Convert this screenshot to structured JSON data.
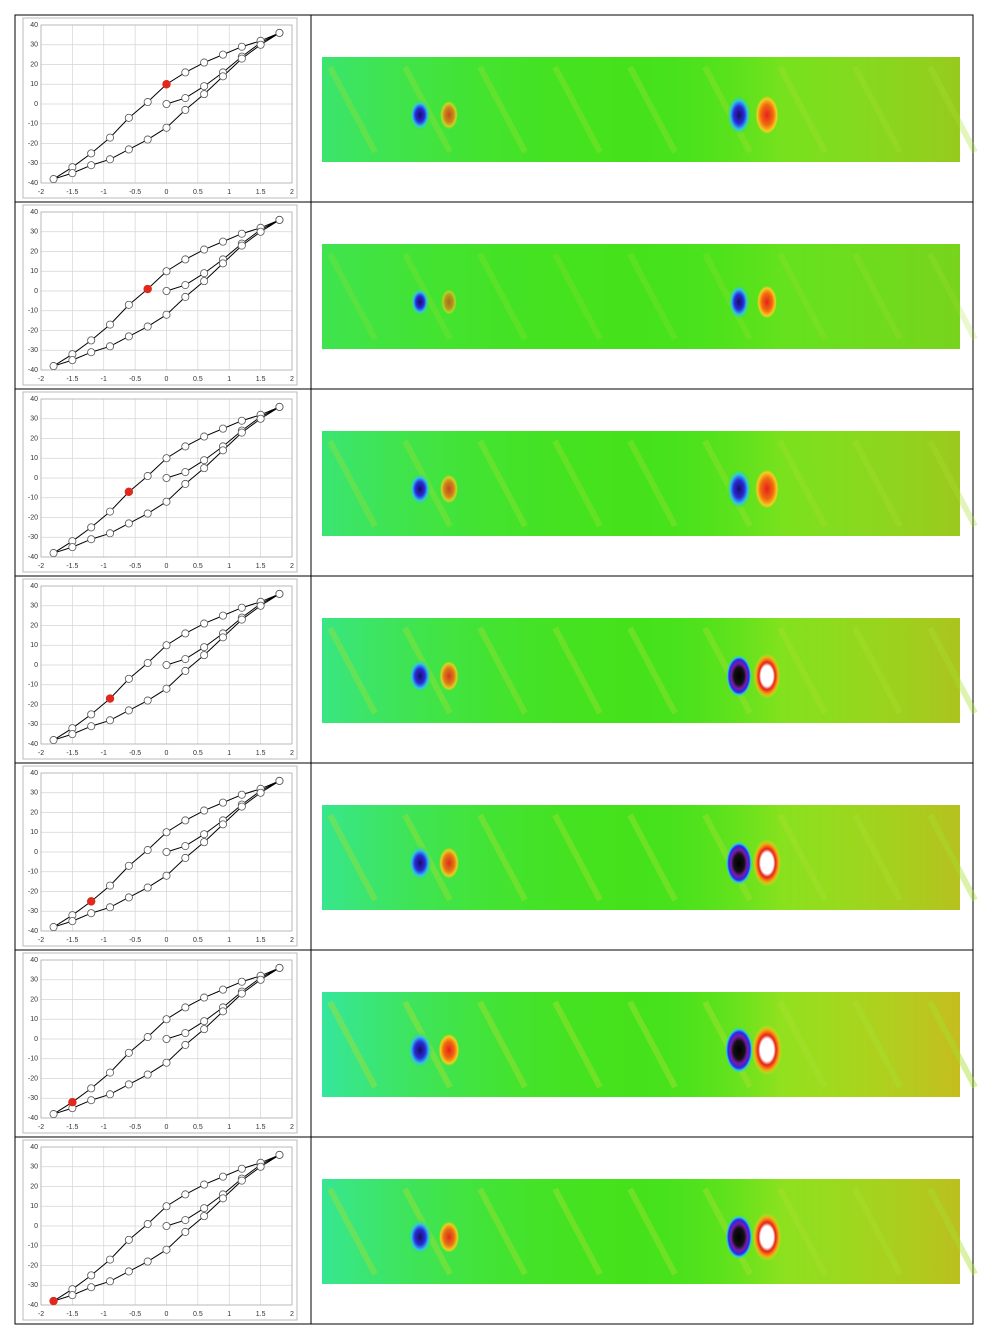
{
  "chart_data": [
    {
      "type": "line",
      "xlim": [
        -2,
        2
      ],
      "ylim": [
        -40,
        40
      ],
      "xticks": [
        -2,
        -1.5,
        -1,
        -0.5,
        0,
        0.5,
        1,
        1.5,
        2
      ],
      "yticks": [
        -40,
        -30,
        -20,
        -10,
        0,
        10,
        20,
        30,
        40
      ],
      "grid": true,
      "series": [
        {
          "color": "#000000",
          "x": [
            0,
            0.3,
            0.6,
            0.9,
            1.2,
            1.5,
            1.8,
            1.5,
            1.2,
            0.9,
            0.6,
            0.3,
            0,
            -0.3,
            -0.6,
            -0.9,
            -1.2,
            -1.5,
            -1.8,
            -1.5,
            -1.2,
            -0.9,
            -0.6,
            -0.3,
            0,
            0.3,
            0.6,
            0.9,
            1.2,
            1.5,
            1.8
          ],
          "y": [
            0,
            3,
            9,
            16,
            24,
            31,
            36,
            32,
            29,
            25,
            21,
            16,
            10,
            1,
            -7,
            -17,
            -25,
            -32,
            -38,
            -35,
            -31,
            -28,
            -23,
            -18,
            -12,
            -3,
            5,
            14,
            23,
            30,
            36
          ]
        },
        {
          "color": "#e0281c",
          "x": [
            0
          ],
          "y": [
            10
          ]
        }
      ]
    },
    {
      "type": "line",
      "xlim": [
        -2,
        2
      ],
      "ylim": [
        -40,
        40
      ],
      "xticks": [
        -2,
        -1.5,
        -1,
        -0.5,
        0,
        0.5,
        1,
        1.5,
        2
      ],
      "yticks": [
        -40,
        -30,
        -20,
        -10,
        0,
        10,
        20,
        30,
        40
      ],
      "grid": true,
      "series": [
        {
          "color": "#000000",
          "x": [
            0,
            0.3,
            0.6,
            0.9,
            1.2,
            1.5,
            1.8,
            1.5,
            1.2,
            0.9,
            0.6,
            0.3,
            0,
            -0.3,
            -0.6,
            -0.9,
            -1.2,
            -1.5,
            -1.8,
            -1.5,
            -1.2,
            -0.9,
            -0.6,
            -0.3,
            0,
            0.3,
            0.6,
            0.9,
            1.2,
            1.5,
            1.8
          ],
          "y": [
            0,
            3,
            9,
            16,
            24,
            31,
            36,
            32,
            29,
            25,
            21,
            16,
            10,
            1,
            -7,
            -17,
            -25,
            -32,
            -38,
            -35,
            -31,
            -28,
            -23,
            -18,
            -12,
            -3,
            5,
            14,
            23,
            30,
            36
          ]
        },
        {
          "color": "#e0281c",
          "x": [
            -0.3
          ],
          "y": [
            1
          ]
        }
      ]
    },
    {
      "type": "line",
      "xlim": [
        -2,
        2
      ],
      "ylim": [
        -40,
        40
      ],
      "xticks": [
        -2,
        -1.5,
        -1,
        -0.5,
        0,
        0.5,
        1,
        1.5,
        2
      ],
      "yticks": [
        -40,
        -30,
        -20,
        -10,
        0,
        10,
        20,
        30,
        40
      ],
      "grid": true,
      "series": [
        {
          "color": "#000000",
          "x": [
            0,
            0.3,
            0.6,
            0.9,
            1.2,
            1.5,
            1.8,
            1.5,
            1.2,
            0.9,
            0.6,
            0.3,
            0,
            -0.3,
            -0.6,
            -0.9,
            -1.2,
            -1.5,
            -1.8,
            -1.5,
            -1.2,
            -0.9,
            -0.6,
            -0.3,
            0,
            0.3,
            0.6,
            0.9,
            1.2,
            1.5,
            1.8
          ],
          "y": [
            0,
            3,
            9,
            16,
            24,
            31,
            36,
            32,
            29,
            25,
            21,
            16,
            10,
            1,
            -7,
            -17,
            -25,
            -32,
            -38,
            -35,
            -31,
            -28,
            -23,
            -18,
            -12,
            -3,
            5,
            14,
            23,
            30,
            36
          ]
        },
        {
          "color": "#e0281c",
          "x": [
            -0.6
          ],
          "y": [
            -7
          ]
        }
      ]
    },
    {
      "type": "line",
      "xlim": [
        -2,
        2
      ],
      "ylim": [
        -40,
        40
      ],
      "xticks": [
        -2,
        -1.5,
        -1,
        -0.5,
        0,
        0.5,
        1,
        1.5,
        2
      ],
      "yticks": [
        -40,
        -30,
        -20,
        -10,
        0,
        10,
        20,
        30,
        40
      ],
      "grid": true,
      "series": [
        {
          "color": "#000000",
          "x": [
            0,
            0.3,
            0.6,
            0.9,
            1.2,
            1.5,
            1.8,
            1.5,
            1.2,
            0.9,
            0.6,
            0.3,
            0,
            -0.3,
            -0.6,
            -0.9,
            -1.2,
            -1.5,
            -1.8,
            -1.5,
            -1.2,
            -0.9,
            -0.6,
            -0.3,
            0,
            0.3,
            0.6,
            0.9,
            1.2,
            1.5,
            1.8
          ],
          "y": [
            0,
            3,
            9,
            16,
            24,
            31,
            36,
            32,
            29,
            25,
            21,
            16,
            10,
            1,
            -7,
            -17,
            -25,
            -32,
            -38,
            -35,
            -31,
            -28,
            -23,
            -18,
            -12,
            -3,
            5,
            14,
            23,
            30,
            36
          ]
        },
        {
          "color": "#e0281c",
          "x": [
            -0.9
          ],
          "y": [
            -17
          ]
        }
      ]
    },
    {
      "type": "line",
      "xlim": [
        -2,
        2
      ],
      "ylim": [
        -40,
        40
      ],
      "xticks": [
        -2,
        -1.5,
        -1,
        -0.5,
        0,
        0.5,
        1,
        1.5,
        2
      ],
      "yticks": [
        -40,
        -30,
        -20,
        -10,
        0,
        10,
        20,
        30,
        40
      ],
      "grid": true,
      "series": [
        {
          "color": "#000000",
          "x": [
            0,
            0.3,
            0.6,
            0.9,
            1.2,
            1.5,
            1.8,
            1.5,
            1.2,
            0.9,
            0.6,
            0.3,
            0,
            -0.3,
            -0.6,
            -0.9,
            -1.2,
            -1.5,
            -1.8,
            -1.5,
            -1.2,
            -0.9,
            -0.6,
            -0.3,
            0,
            0.3,
            0.6,
            0.9,
            1.2,
            1.5,
            1.8
          ],
          "y": [
            0,
            3,
            9,
            16,
            24,
            31,
            36,
            32,
            29,
            25,
            21,
            16,
            10,
            1,
            -7,
            -17,
            -25,
            -32,
            -38,
            -35,
            -31,
            -28,
            -23,
            -18,
            -12,
            -3,
            5,
            14,
            23,
            30,
            36
          ]
        },
        {
          "color": "#e0281c",
          "x": [
            -1.2
          ],
          "y": [
            -25
          ]
        }
      ]
    },
    {
      "type": "line",
      "xlim": [
        -2,
        2
      ],
      "ylim": [
        -40,
        40
      ],
      "xticks": [
        -2,
        -1.5,
        -1,
        -0.5,
        0,
        0.5,
        1,
        1.5,
        2
      ],
      "yticks": [
        -40,
        -30,
        -20,
        -10,
        0,
        10,
        20,
        30,
        40
      ],
      "grid": true,
      "series": [
        {
          "color": "#000000",
          "x": [
            0,
            0.3,
            0.6,
            0.9,
            1.2,
            1.5,
            1.8,
            1.5,
            1.2,
            0.9,
            0.6,
            0.3,
            0,
            -0.3,
            -0.6,
            -0.9,
            -1.2,
            -1.5,
            -1.8,
            -1.5,
            -1.2,
            -0.9,
            -0.6,
            -0.3,
            0,
            0.3,
            0.6,
            0.9,
            1.2,
            1.5,
            1.8
          ],
          "y": [
            0,
            3,
            9,
            16,
            24,
            31,
            36,
            32,
            29,
            25,
            21,
            16,
            10,
            1,
            -7,
            -17,
            -25,
            -32,
            -38,
            -35,
            -31,
            -28,
            -23,
            -18,
            -12,
            -3,
            5,
            14,
            23,
            30,
            36
          ]
        },
        {
          "color": "#e0281c",
          "x": [
            -1.5
          ],
          "y": [
            -32
          ]
        }
      ]
    },
    {
      "type": "line",
      "xlim": [
        -2,
        2
      ],
      "ylim": [
        -40,
        40
      ],
      "xticks": [
        -2,
        -1.5,
        -1,
        -0.5,
        0,
        0.5,
        1,
        1.5,
        2
      ],
      "yticks": [
        -40,
        -30,
        -20,
        -10,
        0,
        10,
        20,
        30,
        40
      ],
      "grid": true,
      "series": [
        {
          "color": "#000000",
          "x": [
            0,
            0.3,
            0.6,
            0.9,
            1.2,
            1.5,
            1.8,
            1.5,
            1.2,
            0.9,
            0.6,
            0.3,
            0,
            -0.3,
            -0.6,
            -0.9,
            -1.2,
            -1.5,
            -1.8,
            -1.5,
            -1.2,
            -0.9,
            -0.6,
            -0.3,
            0,
            0.3,
            0.6,
            0.9,
            1.2,
            1.5,
            1.8
          ],
          "y": [
            0,
            3,
            9,
            16,
            24,
            31,
            36,
            32,
            29,
            25,
            21,
            16,
            10,
            1,
            -7,
            -17,
            -25,
            -32,
            -38,
            -35,
            -31,
            -28,
            -23,
            -18,
            -12,
            -3,
            5,
            14,
            23,
            30,
            36
          ]
        },
        {
          "color": "#e0281c",
          "x": [
            -1.8
          ],
          "y": [
            -38
          ]
        }
      ]
    }
  ]
}
